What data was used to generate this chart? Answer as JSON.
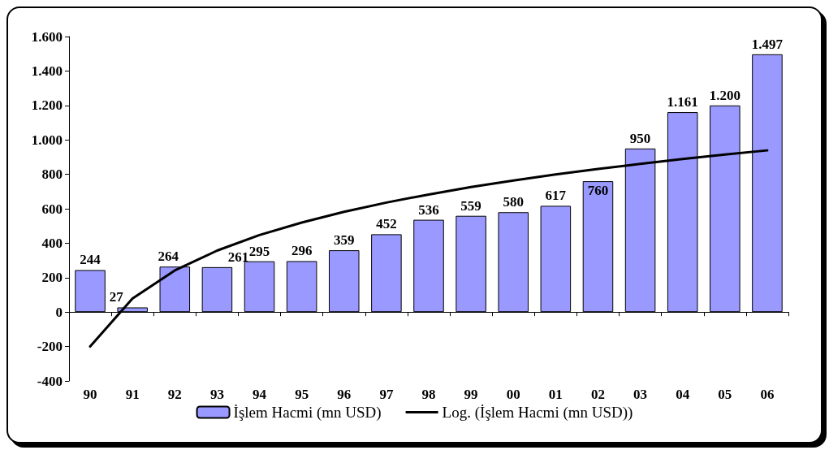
{
  "chart_data": {
    "type": "bar",
    "categories": [
      "90",
      "91",
      "92",
      "93",
      "94",
      "95",
      "96",
      "97",
      "98",
      "99",
      "00",
      "01",
      "02",
      "03",
      "04",
      "05",
      "06"
    ],
    "series": [
      {
        "name": "İşlem Hacmi (mn USD)",
        "color": "#9999ff",
        "values": [
          244,
          27,
          264,
          261,
          295,
          296,
          359,
          452,
          536,
          559,
          580,
          617,
          760,
          950,
          1161,
          1200,
          1497
        ],
        "value_labels": [
          "244",
          "27",
          "264",
          "261",
          "295",
          "296",
          "359",
          "452",
          "536",
          "559",
          "580",
          "617",
          "760",
          "950",
          "1.161",
          "1.200",
          "1.497"
        ]
      },
      {
        "name": "Log. (İşlem Hacmi (mn USD))",
        "type": "line",
        "color": "#000000",
        "marker": "none",
        "line_style": "solid",
        "values": [
          -200,
          79,
          242,
          357,
          447,
          520,
          582,
          636,
          683,
          726,
          764,
          799,
          831,
          861,
          889,
          915,
          939
        ]
      }
    ],
    "ylim": [
      -400,
      1600
    ],
    "yticks": [
      {
        "value": -400,
        "label": "-400"
      },
      {
        "value": -200,
        "label": "-200"
      },
      0,
      200,
      400,
      600,
      800,
      {
        "value": 1000,
        "label": "1.000"
      },
      {
        "value": 1200,
        "label": "1.200"
      },
      {
        "value": 1400,
        "label": "1.400"
      },
      {
        "value": 1600,
        "label": "1.600"
      }
    ],
    "legend": "bottom"
  }
}
